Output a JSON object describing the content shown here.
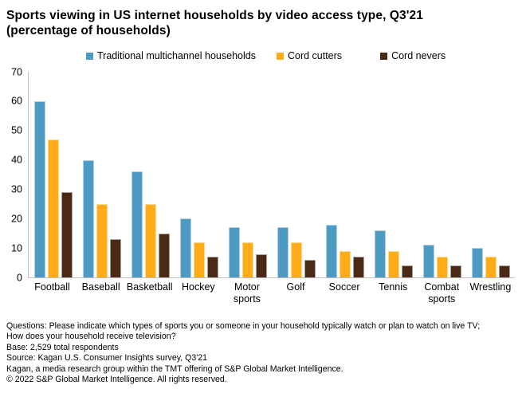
{
  "title": {
    "line1": "Sports viewing in US internet households by video access type, Q3'21",
    "line2": "(percentage of households)"
  },
  "chart_data": {
    "type": "bar",
    "title": "Sports viewing in US internet households by video access type, Q3'21 (percentage of households)",
    "categories": [
      "Football",
      "Baseball",
      "Basketball",
      "Hockey",
      "Motor sports",
      "Golf",
      "Soccer",
      "Tennis",
      "Combat sports",
      "Wrestling"
    ],
    "series": [
      {
        "name": "Traditional multichannel households",
        "color": "#4F9AC2",
        "values": [
          60,
          40,
          36,
          20,
          17,
          17,
          18,
          16,
          11,
          10
        ]
      },
      {
        "name": "Cord cutters",
        "color": "#FFAC18",
        "values": [
          47,
          25,
          25,
          12,
          12,
          12,
          9,
          9,
          7,
          7
        ]
      },
      {
        "name": "Cord nevers",
        "color": "#4A2917",
        "values": [
          29,
          13,
          15,
          7,
          8,
          6,
          7,
          4,
          4,
          4
        ]
      }
    ],
    "ylabel": "",
    "xlabel": "",
    "ylim": [
      0,
      70
    ],
    "ytick_interval": 10,
    "grid": false,
    "legend_position": "top",
    "axis_color": "#bfbfbf"
  },
  "footer": {
    "lines": [
      "Questions: Please indicate which types of sports you or someone in your household typically watch or plan to watch on live TV;",
      "How does your household receive television?",
      "Base: 2,529 total respondents",
      "Source: Kagan U.S. Consumer Insights survey, Q3'21",
      "Kagan, a media research group within the TMT offering of S&P Global Market Intelligence.",
      "© 2022 S&P Global Market Intelligence. All rights reserved."
    ]
  }
}
